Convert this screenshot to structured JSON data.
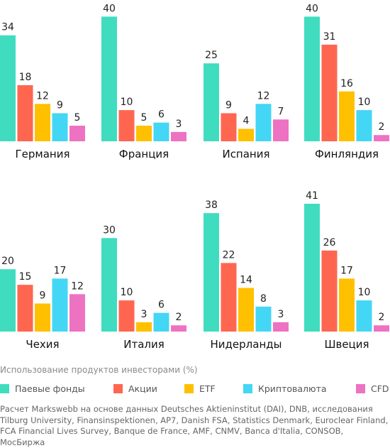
{
  "colors": {
    "Паевые фонды": "#40dcc0",
    "Акции": "#ff6650",
    "ETF": "#ffc000",
    "Криптовалюта": "#44d6f5",
    "CFD": "#ee72c2"
  },
  "chart_data": {
    "type": "bar",
    "title": "Использование продуктов инвесторами (%)",
    "legend_placement": "bottom",
    "grid": false,
    "series_names": [
      "Паевые фонды",
      "Акции",
      "ETF",
      "Криптовалюта",
      "CFD"
    ],
    "panels": [
      {
        "country": "Германия",
        "values": [
          34,
          18,
          12,
          9,
          5
        ]
      },
      {
        "country": "Франция",
        "values": [
          40,
          10,
          5,
          6,
          3
        ]
      },
      {
        "country": "Испания",
        "values": [
          25,
          9,
          4,
          12,
          7
        ]
      },
      {
        "country": "Финляндия",
        "values": [
          40,
          31,
          16,
          10,
          2
        ]
      },
      {
        "country": "Чехия",
        "values": [
          20,
          15,
          9,
          17,
          12
        ]
      },
      {
        "country": "Италия",
        "values": [
          30,
          10,
          3,
          6,
          2
        ]
      },
      {
        "country": "Нидерланды",
        "values": [
          38,
          22,
          14,
          8,
          3
        ]
      },
      {
        "country": "Швеция",
        "values": [
          41,
          26,
          17,
          10,
          2
        ]
      }
    ]
  },
  "source": "Расчет Markswebb на основе данных Deutsches Aktieninstitut (DAI), DNB, исследования Tilburg University, Finansinspektionen, AP7, Danish FSA, Statistics Denmark, Euroclear Finland, FCA Financial Lives Survey, Banque de France, AMF, CNMV, Banca d'Italia, CONSOB, МосБиржа"
}
